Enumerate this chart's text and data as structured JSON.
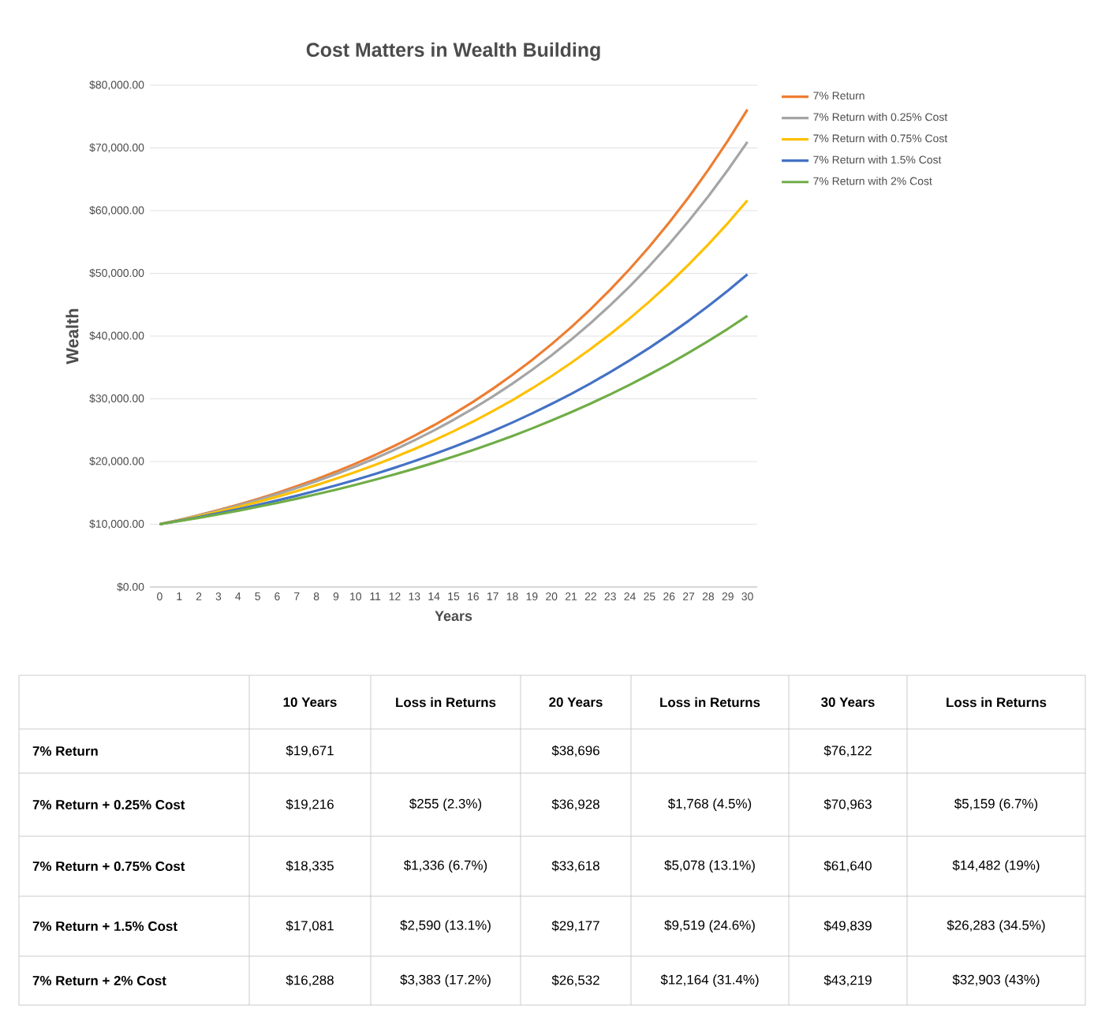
{
  "chart_data": [
    {
      "type": "line",
      "title": "Cost Matters in Wealth Building",
      "xlabel": "Years",
      "ylabel": "Wealth",
      "categories": [
        "0",
        "1",
        "2",
        "3",
        "4",
        "5",
        "6",
        "7",
        "8",
        "9",
        "10",
        "11",
        "12",
        "13",
        "14",
        "15",
        "16",
        "17",
        "18",
        "19",
        "20",
        "21",
        "22",
        "23",
        "24",
        "25",
        "26",
        "27",
        "28",
        "29",
        "30"
      ],
      "ylim": [
        0,
        80000
      ],
      "yticks": [
        {
          "value": 0,
          "label": "$0.00"
        },
        {
          "value": 10000,
          "label": "$10,000.00"
        },
        {
          "value": 20000,
          "label": "$20,000.00"
        },
        {
          "value": 30000,
          "label": "$30,000.00"
        },
        {
          "value": 40000,
          "label": "$40,000.00"
        },
        {
          "value": 50000,
          "label": "$50,000.00"
        },
        {
          "value": 60000,
          "label": "$60,000.00"
        },
        {
          "value": 70000,
          "label": "$70,000.00"
        },
        {
          "value": 80000,
          "label": "$80,000.00"
        }
      ],
      "grid": "y",
      "legend": "right",
      "marker": "none",
      "line_style": "solid",
      "series": [
        {
          "name": "7% Return",
          "color": "#ed7d31",
          "values": [
            10000,
            10700,
            11449,
            12250,
            13108,
            14026,
            15007,
            16058,
            17182,
            18385,
            19671,
            21049,
            22522,
            24098,
            25785,
            27590,
            29522,
            31588,
            33799,
            36165,
            38696,
            41406,
            44304,
            47405,
            50724,
            54274,
            58074,
            62139,
            66488,
            71143,
            76122
          ]
        },
        {
          "name": "7% Return with 0.25% Cost",
          "color": "#a5a5a5",
          "values": [
            10000,
            10675,
            11396,
            12165,
            12986,
            13862,
            14798,
            15797,
            16863,
            18001,
            19216,
            20513,
            21898,
            23376,
            24954,
            26638,
            28436,
            30355,
            32404,
            34592,
            36928,
            39421,
            42082,
            44922,
            47954,
            51191,
            54646,
            58334,
            62271,
            66475,
            70963
          ]
        },
        {
          "name": "7% Return with 0.75% Cost",
          "color": "#ffc000",
          "values": [
            10000,
            10625,
            11289,
            11995,
            12744,
            13541,
            14387,
            15287,
            16242,
            17257,
            18335,
            19481,
            20699,
            21992,
            23367,
            24827,
            26379,
            28028,
            29779,
            31640,
            33618,
            35719,
            37951,
            40323,
            42843,
            45521,
            48366,
            51389,
            54601,
            58013,
            61640
          ]
        },
        {
          "name": "7% Return with 1.5% Cost",
          "color": "#4472c4",
          "values": [
            10000,
            10550,
            11130,
            11742,
            12388,
            13070,
            13788,
            14547,
            15347,
            16191,
            17081,
            18020,
            19012,
            20057,
            21161,
            22325,
            23552,
            24848,
            26214,
            27656,
            29177,
            30782,
            32475,
            34261,
            36146,
            38134,
            40231,
            42444,
            44778,
            47241,
            49839
          ]
        },
        {
          "name": "7% Return with 2% Cost",
          "color": "#70ad47",
          "values": [
            10000,
            10500,
            11025,
            11576,
            12155,
            12763,
            13401,
            14071,
            14775,
            15513,
            16288,
            17103,
            17959,
            18856,
            19799,
            20789,
            21829,
            22920,
            24066,
            25270,
            26532,
            27860,
            29253,
            30715,
            32251,
            33864,
            35557,
            37335,
            39201,
            41161,
            43219
          ]
        }
      ]
    },
    {
      "type": "other",
      "categories": [
        null,
        "10 Years",
        "Loss in Returns",
        "20 Years",
        "Loss in Returns",
        "30 Years",
        "Loss in Returns"
      ],
      "y_categories": [
        "7% Return",
        "7% Return + 0.25% Cost",
        "7% Return + 0.75% Cost",
        "7% Return + 1.5% Cost",
        "7% Return + 2% Cost"
      ],
      "cell_labels": [
        [
          "$19,671",
          null,
          "$38,696",
          null,
          "$76,122",
          null
        ],
        [
          "$19,216",
          "$255 (2.3%)",
          "$36,928",
          "$1,768 (4.5%)",
          "$70,963",
          "$5,159 (6.7%)"
        ],
        [
          "$18,335",
          "$1,336 (6.7%)",
          "$33,618",
          "$5,078 (13.1%)",
          "$61,640",
          "$14,482 (19%)"
        ],
        [
          "$17,081",
          "$2,590 (13.1%)",
          "$29,177",
          "$9,519 (24.6%)",
          "$49,839",
          "$26,283 (34.5%)"
        ],
        [
          "$16,288",
          "$3,383 (17.2%)",
          "$26,532",
          "$12,164 (31.4%)",
          "$43,219",
          "$32,903 (43%)"
        ]
      ]
    }
  ]
}
